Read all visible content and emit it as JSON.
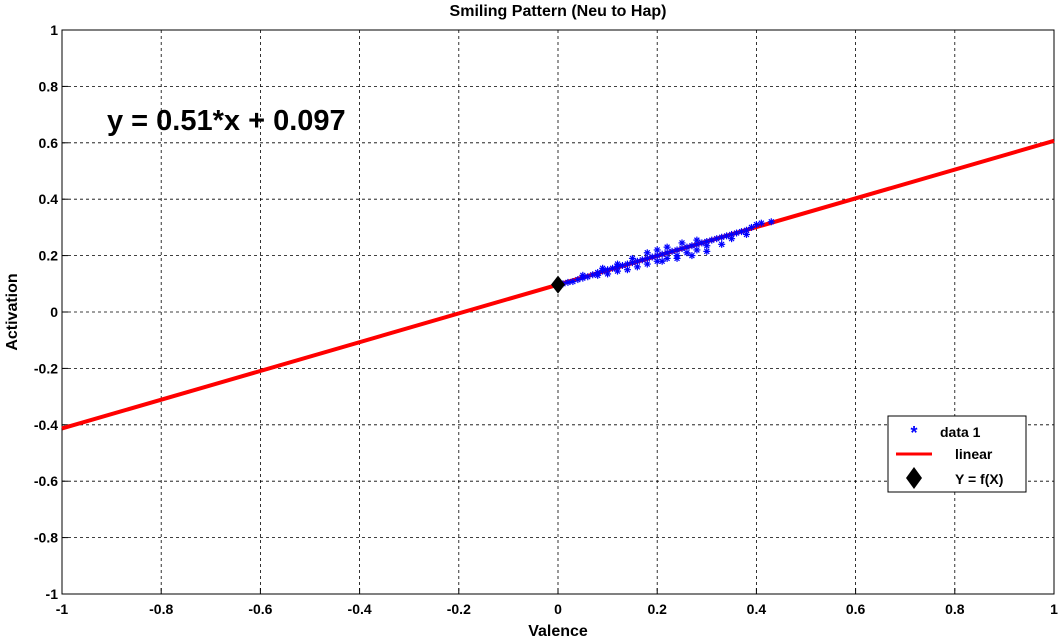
{
  "chart_data": {
    "type": "scatter",
    "title": "Smiling Pattern (Neu to Hap)",
    "xlabel": "Valence",
    "ylabel": "Activation",
    "xlim": [
      -1,
      1
    ],
    "ylim": [
      -1,
      1
    ],
    "grid": true,
    "x_ticks": [
      "-1",
      "-0.8",
      "-0.6",
      "-0.4",
      "-0.2",
      "0",
      "0.2",
      "0.4",
      "0.6",
      "0.8",
      "1"
    ],
    "y_ticks": [
      "-1",
      "-0.8",
      "-0.6",
      "-0.4",
      "-0.2",
      "0",
      "0.2",
      "0.4",
      "0.6",
      "0.8",
      "1"
    ],
    "annotation": "y = 0.51*x + 0.097",
    "legend_position": "bottom-right",
    "series": [
      {
        "name": "data 1",
        "kind": "scatter",
        "marker": "asterisk",
        "color": "#0000ff",
        "points": [
          [
            0.01,
            0.1
          ],
          [
            0.02,
            0.105
          ],
          [
            0.03,
            0.108
          ],
          [
            0.04,
            0.115
          ],
          [
            0.05,
            0.12
          ],
          [
            0.05,
            0.13
          ],
          [
            0.06,
            0.125
          ],
          [
            0.07,
            0.132
          ],
          [
            0.08,
            0.14
          ],
          [
            0.08,
            0.13
          ],
          [
            0.09,
            0.145
          ],
          [
            0.1,
            0.15
          ],
          [
            0.1,
            0.135
          ],
          [
            0.11,
            0.155
          ],
          [
            0.12,
            0.16
          ],
          [
            0.12,
            0.145
          ],
          [
            0.13,
            0.165
          ],
          [
            0.14,
            0.17
          ],
          [
            0.14,
            0.15
          ],
          [
            0.15,
            0.175
          ],
          [
            0.16,
            0.18
          ],
          [
            0.16,
            0.16
          ],
          [
            0.17,
            0.185
          ],
          [
            0.18,
            0.19
          ],
          [
            0.18,
            0.17
          ],
          [
            0.19,
            0.195
          ],
          [
            0.2,
            0.2
          ],
          [
            0.2,
            0.18
          ],
          [
            0.21,
            0.205
          ],
          [
            0.22,
            0.21
          ],
          [
            0.22,
            0.19
          ],
          [
            0.23,
            0.215
          ],
          [
            0.24,
            0.22
          ],
          [
            0.24,
            0.2
          ],
          [
            0.25,
            0.225
          ],
          [
            0.26,
            0.23
          ],
          [
            0.26,
            0.21
          ],
          [
            0.27,
            0.235
          ],
          [
            0.28,
            0.24
          ],
          [
            0.28,
            0.22
          ],
          [
            0.29,
            0.245
          ],
          [
            0.3,
            0.25
          ],
          [
            0.3,
            0.235
          ],
          [
            0.31,
            0.255
          ],
          [
            0.32,
            0.26
          ],
          [
            0.33,
            0.265
          ],
          [
            0.34,
            0.27
          ],
          [
            0.35,
            0.275
          ],
          [
            0.36,
            0.28
          ],
          [
            0.37,
            0.285
          ],
          [
            0.38,
            0.29
          ],
          [
            0.39,
            0.3
          ],
          [
            0.4,
            0.31
          ],
          [
            0.41,
            0.315
          ],
          [
            0.43,
            0.32
          ],
          [
            0.18,
            0.21
          ],
          [
            0.2,
            0.22
          ],
          [
            0.22,
            0.23
          ],
          [
            0.25,
            0.245
          ],
          [
            0.28,
            0.255
          ],
          [
            0.15,
            0.19
          ],
          [
            0.12,
            0.17
          ],
          [
            0.09,
            0.155
          ],
          [
            0.3,
            0.215
          ],
          [
            0.27,
            0.2
          ],
          [
            0.24,
            0.19
          ],
          [
            0.21,
            0.18
          ],
          [
            0.33,
            0.24
          ],
          [
            0.35,
            0.26
          ],
          [
            0.38,
            0.275
          ]
        ]
      },
      {
        "name": "linear",
        "kind": "line",
        "color": "#ff0000",
        "slope": 0.51,
        "intercept": 0.097,
        "x_range": [
          -1,
          1
        ]
      },
      {
        "name": "Y = f(X)",
        "kind": "marker",
        "marker": "diamond",
        "color": "#000000",
        "points": [
          [
            0,
            0.097
          ]
        ]
      }
    ]
  }
}
